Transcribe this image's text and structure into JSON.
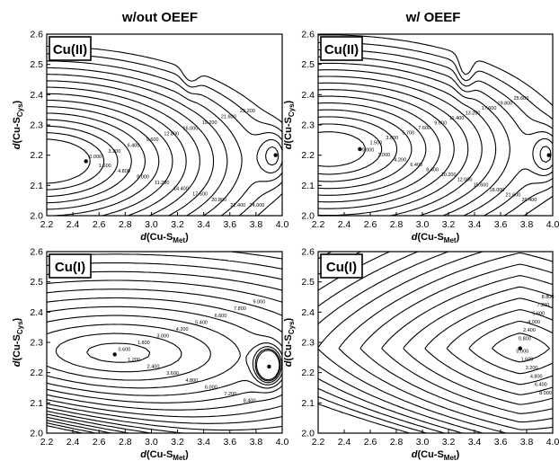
{
  "columns": [
    "w/out OEEF",
    "w/ OEEF"
  ],
  "axis_labels": {
    "x": {
      "prefix": "d",
      "main": "(Cu-S",
      "sub": "Met",
      "close": ")"
    },
    "y": {
      "prefix": "d",
      "main": "(Cu-S",
      "sub": "Cys",
      "close": ")"
    }
  },
  "panels": [
    {
      "id": "cuII-no-oeef",
      "state_label": "Cu(II)",
      "column": "w/out OEEF"
    },
    {
      "id": "cuII-oeef",
      "state_label": "Cu(II)",
      "column": "w/ OEEF"
    },
    {
      "id": "cuI-no-oeef",
      "state_label": "Cu(I)",
      "column": "w/out OEEF"
    },
    {
      "id": "cuI-oeef",
      "state_label": "Cu(I)",
      "column": "w/ OEEF"
    }
  ],
  "chart_data": [
    {
      "type": "contour",
      "title": "w/out OEEF",
      "panel_label": "Cu(II)",
      "xlabel": "d(Cu-S_Met)",
      "ylabel": "d(Cu-S_Cys)",
      "xlim": [
        2.2,
        4.0
      ],
      "ylim": [
        2.0,
        2.6
      ],
      "xticks": [
        "2.2",
        "2.4",
        "2.6",
        "2.8",
        "3.0",
        "3.2",
        "3.4",
        "3.6",
        "3.8",
        "4.0"
      ],
      "yticks": [
        "2.0",
        "2.1",
        "2.2",
        "2.3",
        "2.4",
        "2.5",
        "2.6"
      ],
      "minima": [
        {
          "x": 2.5,
          "y": 2.18
        },
        {
          "x": 3.95,
          "y": 2.2
        }
      ],
      "saddles": [
        {
          "x": 3.3,
          "y": 2.5
        }
      ],
      "contour_labels": [
        "0.000",
        "1.600",
        "3.200",
        "4.800",
        "6.400",
        "8.000",
        "9.600",
        "11.200",
        "12.800",
        "14.400",
        "16.000",
        "17.600",
        "19.200",
        "20.800",
        "21.600",
        "22.400",
        "23.200",
        "24.000"
      ]
    },
    {
      "type": "contour",
      "title": "w/ OEEF",
      "panel_label": "Cu(II)",
      "xlabel": "d(Cu-S_Met)",
      "ylabel": "d(Cu-S_Cys)",
      "xlim": [
        2.2,
        4.0
      ],
      "ylim": [
        2.0,
        2.6
      ],
      "xticks": [
        "2.2",
        "2.4",
        "2.6",
        "2.8",
        "3.0",
        "3.2",
        "3.4",
        "3.6",
        "3.8",
        "4.0"
      ],
      "yticks": [
        "2.0",
        "2.1",
        "2.2",
        "2.3",
        "2.4",
        "2.5",
        "2.6"
      ],
      "minima": [
        {
          "x": 2.52,
          "y": 2.22
        },
        {
          "x": 3.97,
          "y": 2.2
        }
      ],
      "saddles": [
        {
          "x": 3.33,
          "y": 2.49
        }
      ],
      "contour_labels": [
        "0.000",
        "1.500",
        "3.000",
        "3.800",
        "4.200",
        "5.700",
        "6.400",
        "7.600",
        "8.400",
        "9.600",
        "10.200",
        "11.400",
        "12.000",
        "13.200",
        "15.600",
        "17.600",
        "18.000",
        "19.800",
        "21.600",
        "25.600",
        "26.400"
      ]
    },
    {
      "type": "contour",
      "title": "",
      "panel_label": "Cu(I)",
      "xlabel": "d(Cu-S_Met)",
      "ylabel": "d(Cu-S_Cys)",
      "xlim": [
        2.2,
        4.0
      ],
      "ylim": [
        2.0,
        2.6
      ],
      "xticks": [
        "2.2",
        "2.4",
        "2.6",
        "2.8",
        "3.0",
        "3.2",
        "3.4",
        "3.6",
        "3.8",
        "4.0"
      ],
      "yticks": [
        "2.0",
        "2.1",
        "2.2",
        "2.3",
        "2.4",
        "2.5",
        "2.6"
      ],
      "minima": [
        {
          "x": 2.72,
          "y": 2.26
        },
        {
          "x": 3.9,
          "y": 2.22
        }
      ],
      "contour_labels": [
        "0.600",
        "1.200",
        "1.800",
        "2.400",
        "3.000",
        "3.600",
        "4.200",
        "4.800",
        "5.400",
        "6.000",
        "6.600",
        "7.200",
        "7.800",
        "8.400",
        "9.000"
      ]
    },
    {
      "type": "contour",
      "title": "",
      "panel_label": "Cu(I)",
      "xlabel": "d(Cu-S_Met)",
      "ylabel": "d(Cu-S_Cys)",
      "xlim": [
        2.2,
        4.0
      ],
      "ylim": [
        2.0,
        2.6
      ],
      "xticks": [
        "2.2",
        "2.4",
        "2.6",
        "2.8",
        "3.0",
        "3.2",
        "3.4",
        "3.6",
        "3.8",
        "4.0"
      ],
      "yticks": [
        "2.0",
        "2.1",
        "2.2",
        "2.3",
        "2.4",
        "2.5",
        "2.6"
      ],
      "minima": [
        {
          "x": 3.75,
          "y": 2.28
        }
      ],
      "contour_labels": [
        "0.000",
        "0.800",
        "1.600",
        "2.400",
        "3.200",
        "4.000",
        "4.800",
        "5.600",
        "6.400",
        "7.200",
        "8.000",
        "8.800"
      ]
    }
  ]
}
